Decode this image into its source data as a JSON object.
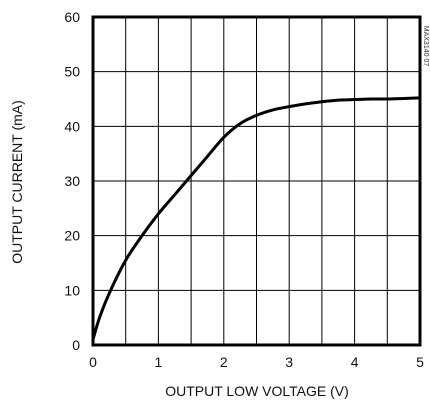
{
  "chart_data": {
    "type": "line",
    "xlabel": "OUTPUT LOW VOLTAGE (V)",
    "ylabel": "OUTPUT CURRENT (mA)",
    "xlim": [
      0,
      5
    ],
    "ylim": [
      0,
      60
    ],
    "x_ticks": [
      0,
      1,
      2,
      3,
      4,
      5
    ],
    "y_ticks": [
      0,
      10,
      20,
      30,
      40,
      50,
      60
    ],
    "x_tick_labels": [
      "0",
      "1",
      "2",
      "3",
      "4",
      "5"
    ],
    "y_tick_labels": [
      "0",
      "10",
      "20",
      "30",
      "40",
      "50",
      "60"
    ],
    "x_grid_step": 0.5,
    "y_grid_step": 10,
    "grid": true,
    "watermark": "MAX3140 07",
    "series": [
      {
        "x": [
          0,
          0.1,
          0.25,
          0.5,
          0.75,
          1.0,
          1.25,
          1.5,
          1.75,
          2.0,
          2.25,
          2.5,
          2.75,
          3.0,
          3.25,
          3.5,
          3.75,
          4.0,
          4.25,
          4.5,
          4.75,
          5.0
        ],
        "values": [
          1,
          5,
          9.5,
          15.5,
          20,
          24,
          27.5,
          31,
          34.5,
          38,
          40.5,
          42,
          43,
          43.6,
          44.1,
          44.5,
          44.8,
          44.9,
          45.0,
          45.0,
          45.1,
          45.2
        ]
      }
    ],
    "colors": {
      "line": "#000000",
      "grid": "#000000",
      "frame": "#000000"
    }
  }
}
